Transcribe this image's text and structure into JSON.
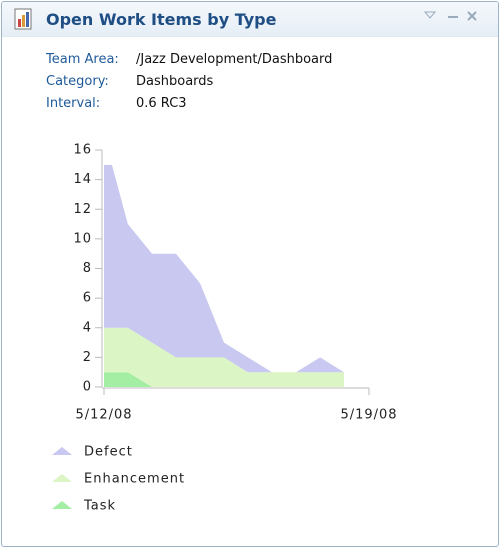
{
  "widget": {
    "title": "Open Work Items by Type",
    "info": [
      {
        "label": "Team Area:",
        "value": "/Jazz Development/Dashboard"
      },
      {
        "label": "Category:",
        "value": "Dashboards"
      },
      {
        "label": "Interval:",
        "value": "0.6 RC3"
      }
    ]
  },
  "chart_data": {
    "type": "stacked_area",
    "x": [
      0,
      0.21,
      0.63,
      1.27,
      1.9,
      2.54,
      3.17,
      3.8,
      4.44,
      5.07,
      5.71,
      6.34
    ],
    "xlim": [
      0,
      7
    ],
    "xticks": [
      {
        "value": 0,
        "label": "5/12/08"
      },
      {
        "value": 7,
        "label": "5/19/08"
      }
    ],
    "ylim": [
      0,
      16
    ],
    "yticks": [
      0,
      2,
      4,
      6,
      8,
      10,
      12,
      14,
      16
    ],
    "series": [
      {
        "name": "Defect",
        "color": "#c8c8f0",
        "values": [
          11,
          11,
          7,
          6,
          7,
          5,
          1,
          1,
          0,
          0,
          1,
          0
        ]
      },
      {
        "name": "Enhancement",
        "color": "#dcf5c4",
        "values": [
          3,
          3,
          3,
          3,
          2,
          2,
          2,
          1,
          1,
          1,
          1,
          1
        ]
      },
      {
        "name": "Task",
        "color": "#a4eea4",
        "values": [
          1,
          1,
          1,
          0,
          0,
          0,
          0,
          0,
          0,
          0,
          0,
          0
        ]
      }
    ]
  }
}
